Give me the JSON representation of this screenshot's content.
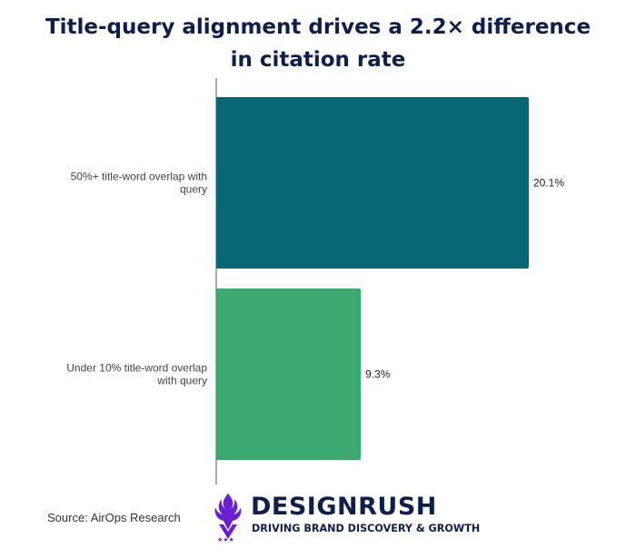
{
  "title_lines": [
    "Title-query alignment drives a 2.2× difference",
    "in citation rate"
  ],
  "source": "Source: AirOps Research",
  "brand": {
    "name": "DESIGNRUSH",
    "tagline": "DRIVING BRAND DISCOVERY & GROWTH",
    "colors": {
      "text": "#0f1f4b",
      "mark": "#6a1fd0"
    }
  },
  "chart_data": {
    "type": "bar",
    "orientation": "horizontal",
    "title": "Title-query alignment drives a 2.2× difference in citation rate",
    "categories": [
      [
        "50%+ title-word overlap with",
        "query"
      ],
      [
        "Under 10% title-word overlap",
        "with query"
      ]
    ],
    "values": [
      20.1,
      9.3
    ],
    "value_labels": [
      "20.1%",
      "9.3%"
    ],
    "colors": [
      "#076673",
      "#3aa86f"
    ],
    "xlim": [
      0,
      20.1
    ],
    "grid": false,
    "legend": "none",
    "xlabel": "",
    "ylabel": ""
  }
}
